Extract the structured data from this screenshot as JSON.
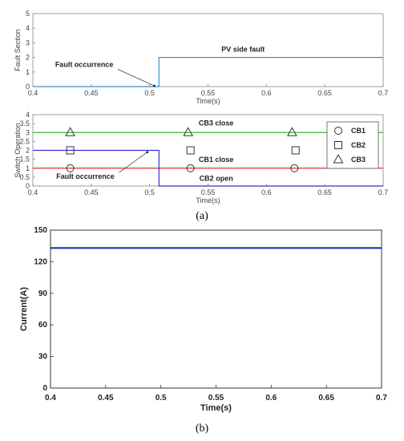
{
  "figure": {
    "caption_a": "(a)",
    "caption_b": "(b)"
  },
  "chart_data": [
    {
      "type": "line",
      "ylabel": "Fault Section",
      "xlabel": "Time(s)",
      "xlim": [
        0.4,
        0.7
      ],
      "ylim": [
        0,
        5
      ],
      "xticks": [
        "0.4",
        "0.45",
        "0.5",
        "0.55",
        "0.6",
        "0.65",
        "0.7"
      ],
      "yticks": [
        "0",
        "1",
        "2",
        "3",
        "4",
        "5"
      ],
      "grid": false,
      "series": [
        {
          "color": "#3a8fd0",
          "x": [
            0.4,
            0.508,
            0.508,
            0.7
          ],
          "y": [
            0,
            0,
            2,
            2
          ]
        }
      ],
      "annotations": [
        {
          "text": "Fault occurrence",
          "x": 0.444,
          "y": 1.35,
          "arrow_to": [
            0.504,
            0.05
          ]
        },
        {
          "text": "PV side fault",
          "x": 0.58,
          "y": 2.4
        }
      ]
    },
    {
      "type": "line",
      "ylabel": "Switch Operation",
      "xlabel": "Time(s)",
      "xlim": [
        0.4,
        0.7
      ],
      "ylim": [
        0,
        4
      ],
      "xticks": [
        "0.4",
        "0.45",
        "0.5",
        "0.55",
        "0.6",
        "0.65",
        "0.7"
      ],
      "yticks": [
        "0",
        "0.5",
        "1",
        "1.5",
        "2",
        "2.5",
        "3",
        "3.5",
        "4"
      ],
      "grid": false,
      "legend_position": "right",
      "series": [
        {
          "name": "CB1",
          "color": "#e03030",
          "marker": "circle",
          "x": [
            0.4,
            0.7
          ],
          "y": [
            1,
            1
          ],
          "marker_x": [
            0.432,
            0.535,
            0.624
          ]
        },
        {
          "name": "CB2",
          "color": "#3333cc",
          "marker": "square",
          "x": [
            0.4,
            0.508,
            0.508,
            0.7
          ],
          "y": [
            2,
            2,
            0,
            0
          ],
          "marker_x": [
            0.432,
            0.535,
            0.625
          ]
        },
        {
          "name": "CB3",
          "color": "#33bb33",
          "marker": "triangle",
          "x": [
            0.4,
            0.7
          ],
          "y": [
            3,
            3
          ],
          "marker_x": [
            0.432,
            0.533,
            0.622
          ]
        }
      ],
      "annotations": [
        {
          "text": "CB3 close",
          "x": 0.557,
          "y": 3.4
        },
        {
          "text": "CB1 close",
          "x": 0.557,
          "y": 1.35
        },
        {
          "text": "CB2 open",
          "x": 0.557,
          "y": 0.3
        },
        {
          "text": "Fault occurrence",
          "x": 0.445,
          "y": 0.4,
          "arrow_to": [
            0.498,
            1.9
          ]
        }
      ]
    },
    {
      "type": "line",
      "ylabel": "Current(A)",
      "xlabel": "Time(s)",
      "xlim": [
        0.4,
        0.7
      ],
      "ylim": [
        0,
        150
      ],
      "xticks": [
        "0.4",
        "0.45",
        "0.5",
        "0.55",
        "0.6",
        "0.65",
        "0.7"
      ],
      "yticks": [
        "0",
        "30",
        "60",
        "90",
        "120",
        "150"
      ],
      "grid": false,
      "series": [
        {
          "color": "#1f2fb0",
          "x": [
            0.4,
            0.7
          ],
          "y": [
            133,
            133
          ]
        }
      ]
    }
  ]
}
